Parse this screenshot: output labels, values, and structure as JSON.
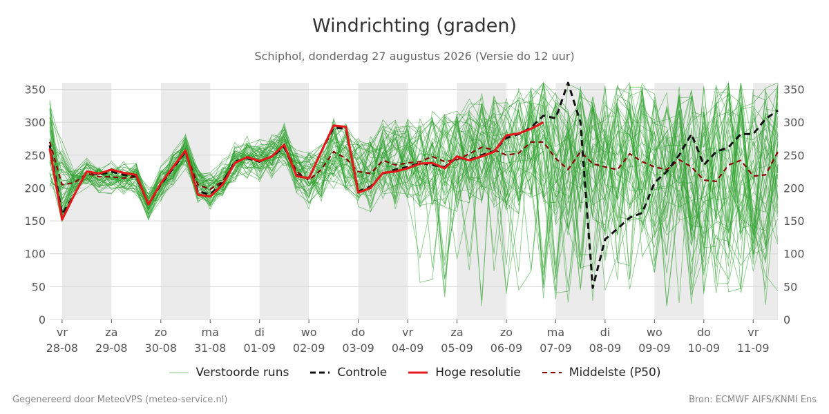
{
  "header": {
    "title": "Windrichting (graden)",
    "subtitle": "Schiphol, donderdag 27 augustus 2026 (Versie do 12 uur)"
  },
  "footer": {
    "left": "Gegenereerd door MeteoVPS (meteo-service.nl)",
    "right": "Bron: ECMWF AIFS/KNMI Ens"
  },
  "colors": {
    "perturbed": "#2ca02c",
    "control": "#111111",
    "high_res": "#e31a1c",
    "median": "#8b0000",
    "weekend_band": "#ebebeb",
    "grid": "#d9d9d9"
  },
  "chart_data": {
    "type": "line",
    "title": "Windrichting (graden)",
    "subtitle": "Schiphol, donderdag 27 augustus 2026 (Versie do 12 uur)",
    "ylim": [
      0,
      360
    ],
    "yticks": [
      0,
      50,
      100,
      150,
      200,
      250,
      300,
      350
    ],
    "xlim_days": [
      -0.25,
      14.5
    ],
    "x_ticks": [
      {
        "day": 0,
        "dow": "vr",
        "date": "28-08"
      },
      {
        "day": 1,
        "dow": "za",
        "date": "29-08"
      },
      {
        "day": 2,
        "dow": "zo",
        "date": "30-08"
      },
      {
        "day": 3,
        "dow": "ma",
        "date": "31-08"
      },
      {
        "day": 4,
        "dow": "di",
        "date": "01-09"
      },
      {
        "day": 5,
        "dow": "wo",
        "date": "02-09"
      },
      {
        "day": 6,
        "dow": "do",
        "date": "03-09"
      },
      {
        "day": 7,
        "dow": "vr",
        "date": "04-09"
      },
      {
        "day": 8,
        "dow": "za",
        "date": "05-09"
      },
      {
        "day": 9,
        "dow": "zo",
        "date": "06-09"
      },
      {
        "day": 10,
        "dow": "ma",
        "date": "07-09"
      },
      {
        "day": 11,
        "dow": "di",
        "date": "08-09"
      },
      {
        "day": 12,
        "dow": "wo",
        "date": "09-09"
      },
      {
        "day": 13,
        "dow": "do",
        "date": "10-09"
      },
      {
        "day": 14,
        "dow": "vr",
        "date": "11-09"
      }
    ],
    "shaded_days": [
      [
        0,
        1
      ],
      [
        2,
        3
      ],
      [
        4,
        5
      ],
      [
        6,
        7
      ],
      [
        8,
        9
      ],
      [
        10,
        11
      ],
      [
        12,
        13
      ],
      [
        14,
        14.5
      ]
    ],
    "legend": [
      "Verstoorde runs",
      "Controle",
      "Hoge resolutie",
      "Middelste (P50)"
    ],
    "series": [
      {
        "name": "Hoge resolutie",
        "style": "solid-red",
        "x": [
          -0.25,
          -0.0,
          0.25,
          0.5,
          0.75,
          1.0,
          1.25,
          1.5,
          1.75,
          2.0,
          2.25,
          2.5,
          2.75,
          3.0,
          3.25,
          3.5,
          3.75,
          4.0,
          4.25,
          4.5,
          4.75,
          5.0,
          5.25,
          5.5,
          5.75,
          6.0,
          6.25,
          6.5,
          6.75,
          7.0,
          7.25,
          7.5,
          7.75,
          8.0,
          8.25,
          8.5,
          8.75,
          9.0,
          9.25,
          9.5,
          9.75
        ],
        "y": [
          260,
          152,
          190,
          225,
          222,
          228,
          223,
          220,
          175,
          207,
          232,
          257,
          190,
          187,
          205,
          238,
          247,
          241,
          248,
          266,
          218,
          215,
          255,
          295,
          293,
          193,
          200,
          223,
          225,
          230,
          237,
          238,
          230,
          248,
          242,
          248,
          255,
          280,
          283,
          290,
          300
        ]
      },
      {
        "name": "Controle",
        "style": "dashed-black",
        "x": [
          -0.25,
          -0.0,
          0.25,
          0.5,
          0.75,
          1.0,
          1.25,
          1.5,
          1.75,
          2.0,
          2.25,
          2.5,
          2.75,
          3.0,
          3.25,
          3.5,
          3.75,
          4.0,
          4.25,
          4.5,
          4.75,
          5.0,
          5.25,
          5.5,
          5.75,
          6.0,
          6.25,
          6.5,
          6.75,
          7.0,
          7.25,
          7.5,
          7.75,
          8.0,
          8.25,
          8.5,
          8.75,
          9.0,
          9.25,
          9.5,
          9.75,
          10.0,
          10.25,
          10.5,
          10.75,
          11.0,
          11.25,
          11.5,
          11.75,
          12.0,
          12.25,
          12.5,
          12.75,
          13.0,
          13.25,
          13.5,
          13.75,
          14.0,
          14.25,
          14.5
        ],
        "y": [
          265,
          160,
          190,
          225,
          220,
          225,
          220,
          218,
          175,
          205,
          230,
          255,
          195,
          190,
          208,
          240,
          245,
          240,
          248,
          262,
          220,
          215,
          255,
          292,
          290,
          195,
          202,
          222,
          228,
          232,
          238,
          235,
          232,
          246,
          243,
          250,
          256,
          276,
          282,
          292,
          310,
          306,
          360,
          300,
          48,
          122,
          138,
          155,
          162,
          208,
          225,
          250,
          282,
          235,
          255,
          262,
          282,
          282,
          305,
          318
        ]
      },
      {
        "name": "Middelste (P50)",
        "style": "dashed-darkred",
        "x": [
          -0.25,
          -0.0,
          0.25,
          0.5,
          0.75,
          1.0,
          1.25,
          1.5,
          1.75,
          2.0,
          2.25,
          2.5,
          2.75,
          3.0,
          3.25,
          3.5,
          3.75,
          4.0,
          4.25,
          4.5,
          4.75,
          5.0,
          5.25,
          5.5,
          5.75,
          6.0,
          6.25,
          6.5,
          6.75,
          7.0,
          7.25,
          7.5,
          7.75,
          8.0,
          8.25,
          8.5,
          8.75,
          9.0,
          9.25,
          9.5,
          9.75,
          10.0,
          10.25,
          10.5,
          10.75,
          11.0,
          11.25,
          11.5,
          11.75,
          12.0,
          12.25,
          12.5,
          12.75,
          13.0,
          13.25,
          13.5,
          13.75,
          14.0,
          14.25,
          14.5
        ],
        "y": [
          270,
          205,
          208,
          222,
          217,
          217,
          215,
          217,
          175,
          207,
          230,
          255,
          205,
          198,
          210,
          238,
          247,
          240,
          248,
          265,
          225,
          212,
          228,
          255,
          245,
          225,
          222,
          242,
          235,
          238,
          240,
          248,
          240,
          243,
          252,
          262,
          258,
          250,
          253,
          270,
          270,
          245,
          228,
          255,
          237,
          232,
          228,
          252,
          240,
          232,
          228,
          243,
          232,
          212,
          210,
          235,
          242,
          218,
          220,
          255
        ]
      }
    ],
    "perturbed_runs_count": 50
  }
}
